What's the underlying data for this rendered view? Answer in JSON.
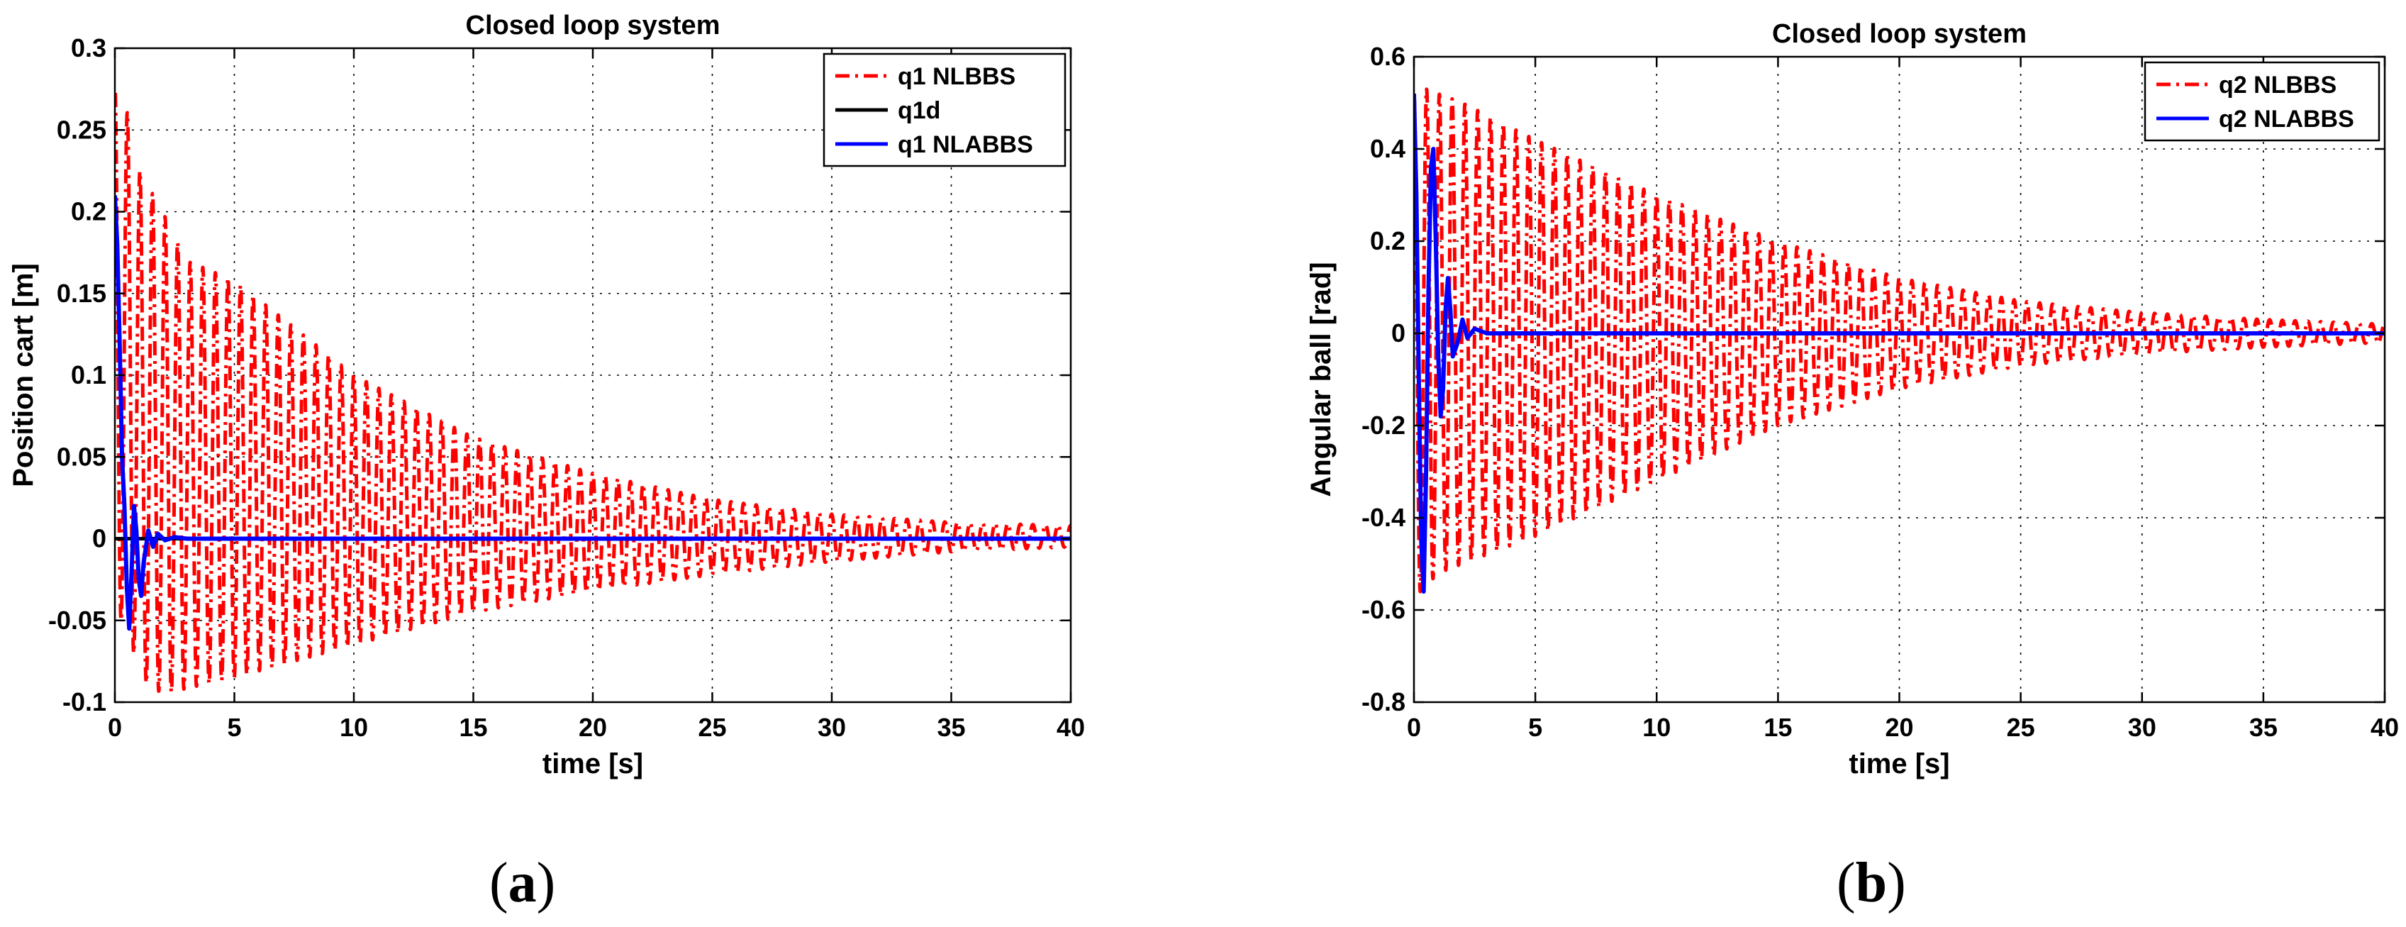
{
  "colors": {
    "nlbbs": "#ff0000",
    "nlabbs": "#0000ff",
    "reference": "#000000",
    "grid": "#000000",
    "background": "#ffffff"
  },
  "captions": {
    "a": "a",
    "b": "b"
  },
  "chart_data": [
    {
      "id": "a",
      "type": "line",
      "title": "Closed loop system",
      "xlabel": "time [s]",
      "ylabel": "Position cart [m]",
      "xlim": [
        0,
        40
      ],
      "ylim": [
        -0.1,
        0.3
      ],
      "xticks": [
        0,
        5,
        10,
        15,
        20,
        25,
        30,
        35,
        40
      ],
      "yticks": [
        -0.1,
        -0.05,
        0,
        0.05,
        0.1,
        0.15,
        0.2,
        0.25,
        0.3
      ],
      "xtick_labels": [
        "0",
        "5",
        "10",
        "15",
        "20",
        "25",
        "30",
        "35",
        "40"
      ],
      "ytick_labels": [
        "-0.1",
        "-0.05",
        "0",
        "0.05",
        "0.1",
        "0.15",
        "0.2",
        "0.25",
        "0.3"
      ],
      "grid": true,
      "legend_position": "top-right",
      "legend": [
        "q1 NLBBS",
        "q1d",
        "q1 NLABBS"
      ],
      "series": [
        {
          "name": "q1 NLBBS",
          "style": "dash-dot",
          "description": "lightly damped oscillation around 0",
          "envelope_upper": [
            [
              0.25,
              0.28
            ],
            [
              1,
              0.226
            ],
            [
              2,
              0.2
            ],
            [
              3,
              0.17
            ],
            [
              5,
              0.158
            ],
            [
              7,
              0.135
            ],
            [
              10,
              0.1
            ],
            [
              15,
              0.062
            ],
            [
              20,
              0.04
            ],
            [
              25,
              0.024
            ],
            [
              30,
              0.015
            ],
            [
              35,
              0.01
            ],
            [
              40,
              0.008
            ]
          ],
          "envelope_lower": [
            [
              0.5,
              -0.05
            ],
            [
              1,
              -0.085
            ],
            [
              2,
              -0.095
            ],
            [
              5,
              -0.085
            ],
            [
              10,
              -0.065
            ],
            [
              15,
              -0.045
            ],
            [
              20,
              -0.032
            ],
            [
              25,
              -0.022
            ],
            [
              30,
              -0.014
            ],
            [
              35,
              -0.008
            ],
            [
              40,
              -0.005
            ]
          ]
        },
        {
          "name": "q1d",
          "style": "solid",
          "description": "constant reference at 0",
          "points": [
            [
              0,
              0
            ],
            [
              40,
              0
            ]
          ]
        },
        {
          "name": "q1 NLABBS",
          "style": "solid",
          "description": "fast settling response",
          "points": [
            [
              0,
              0.21
            ],
            [
              0.1,
              0.18
            ],
            [
              0.2,
              0.12
            ],
            [
              0.3,
              0.05
            ],
            [
              0.4,
              0.02
            ],
            [
              0.5,
              -0.03
            ],
            [
              0.6,
              -0.055
            ],
            [
              0.7,
              -0.02
            ],
            [
              0.8,
              0.02
            ],
            [
              0.9,
              0.005
            ],
            [
              1.0,
              -0.025
            ],
            [
              1.1,
              -0.035
            ],
            [
              1.2,
              -0.015
            ],
            [
              1.4,
              0.005
            ],
            [
              1.6,
              -0.005
            ],
            [
              1.8,
              0.003
            ],
            [
              2.1,
              -0.001
            ],
            [
              2.5,
              0.001
            ],
            [
              3,
              0
            ],
            [
              40,
              0
            ]
          ]
        }
      ]
    },
    {
      "id": "b",
      "type": "line",
      "title": "Closed loop system",
      "xlabel": "time [s]",
      "ylabel": "Angular ball [rad]",
      "xlim": [
        0,
        40
      ],
      "ylim": [
        -0.8,
        0.6
      ],
      "xticks": [
        0,
        5,
        10,
        15,
        20,
        25,
        30,
        35,
        40
      ],
      "yticks": [
        -0.8,
        -0.6,
        -0.4,
        -0.2,
        0,
        0.2,
        0.4,
        0.6
      ],
      "xtick_labels": [
        "0",
        "5",
        "10",
        "15",
        "20",
        "25",
        "30",
        "35",
        "40"
      ],
      "ytick_labels": [
        "-0.8",
        "-0.6",
        "-0.4",
        "-0.2",
        "0",
        "0.2",
        "0.4",
        "0.6"
      ],
      "grid": true,
      "legend_position": "top-right",
      "legend": [
        "q2 NLBBS",
        "q2 NLABBS"
      ],
      "series": [
        {
          "name": "q2 NLBBS",
          "style": "dash-dot",
          "description": "lightly damped oscillation around 0",
          "envelope_upper": [
            [
              0.5,
              0.53
            ],
            [
              2,
              0.5
            ],
            [
              5,
              0.42
            ],
            [
              10,
              0.3
            ],
            [
              15,
              0.2
            ],
            [
              20,
              0.12
            ],
            [
              25,
              0.07
            ],
            [
              30,
              0.045
            ],
            [
              35,
              0.03
            ],
            [
              40,
              0.02
            ]
          ],
          "envelope_lower": [
            [
              0.3,
              -0.56
            ],
            [
              1,
              -0.52
            ],
            [
              5,
              -0.44
            ],
            [
              10,
              -0.32
            ],
            [
              15,
              -0.2
            ],
            [
              20,
              -0.12
            ],
            [
              25,
              -0.07
            ],
            [
              30,
              -0.045
            ],
            [
              35,
              -0.03
            ],
            [
              40,
              -0.02
            ]
          ]
        },
        {
          "name": "q2 NLABBS",
          "style": "solid",
          "description": "fast settling response",
          "points": [
            [
              0,
              0.52
            ],
            [
              0.1,
              0.3
            ],
            [
              0.2,
              -0.1
            ],
            [
              0.3,
              -0.45
            ],
            [
              0.4,
              -0.56
            ],
            [
              0.5,
              -0.3
            ],
            [
              0.6,
              0.1
            ],
            [
              0.7,
              0.36
            ],
            [
              0.8,
              0.4
            ],
            [
              0.9,
              0.2
            ],
            [
              1.0,
              -0.05
            ],
            [
              1.1,
              -0.18
            ],
            [
              1.2,
              -0.12
            ],
            [
              1.3,
              0.05
            ],
            [
              1.4,
              0.12
            ],
            [
              1.5,
              0.05
            ],
            [
              1.6,
              -0.05
            ],
            [
              1.8,
              -0.02
            ],
            [
              2.0,
              0.03
            ],
            [
              2.2,
              -0.01
            ],
            [
              2.5,
              0.01
            ],
            [
              3,
              0
            ],
            [
              40,
              0
            ]
          ]
        }
      ]
    }
  ]
}
